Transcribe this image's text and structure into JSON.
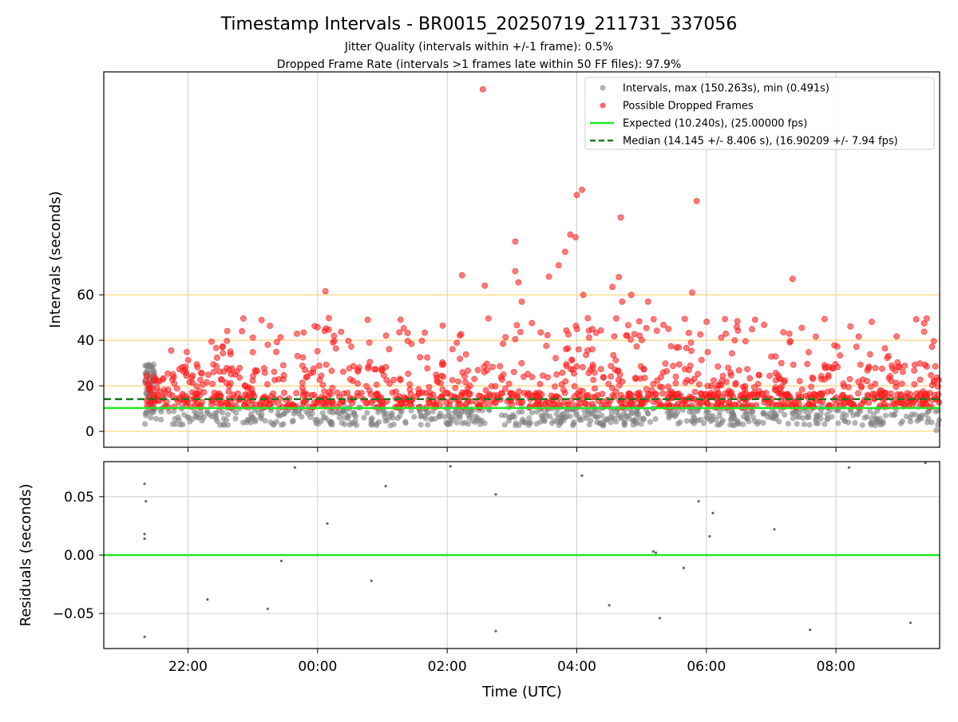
{
  "figure": {
    "title": "Timestamp Intervals - BR0015_20250719_211731_337056",
    "subtitle1": "Jitter Quality (intervals within +/-1 frame): 0.5%",
    "subtitle2": "Dropped Frame Rate (intervals >1 frames late within 50 FF files): 97.9%"
  },
  "chart_data": [
    {
      "type": "scatter",
      "ylabel": "Intervals (seconds)",
      "xrange_hours": [
        20.7,
        33.6
      ],
      "ylim": [
        -7,
        158
      ],
      "yticks": [
        0,
        20,
        40,
        60
      ],
      "reference_hlines": [
        0,
        20,
        40,
        60
      ],
      "reference_hline_color": "#ffd479",
      "grid_x": true,
      "legend_position": "top-right",
      "legend": [
        {
          "label": "Intervals, max (150.263s), min (0.491s)",
          "kind": "dot",
          "color": "#808080"
        },
        {
          "label": "Possible Dropped Frames",
          "kind": "dot",
          "color": "#ff0000"
        },
        {
          "label": "Expected (10.240s), (25.00000 fps)",
          "kind": "line",
          "color": "#22e822"
        },
        {
          "label": "Median (14.145 +/- 8.406 s), (16.90209 +/- 7.94 fps)",
          "kind": "dash",
          "color": "#1a7a1a"
        }
      ],
      "expected_interval": 10.24,
      "median_interval": 14.145,
      "t_start": 21.33,
      "t_end": 33.6,
      "n_points": 1900,
      "dropped_points": [
        [
          2.55,
          150.3
        ],
        [
          4.08,
          106.1
        ],
        [
          4.0,
          103.9
        ],
        [
          5.85,
          101.2
        ],
        [
          4.68,
          94.0
        ],
        [
          3.9,
          86.5
        ],
        [
          3.98,
          85.3
        ],
        [
          3.05,
          83.4
        ],
        [
          3.82,
          78.9
        ],
        [
          3.72,
          73.0
        ],
        [
          3.05,
          70.4
        ],
        [
          2.23,
          68.6
        ],
        [
          3.57,
          68.0
        ],
        [
          4.65,
          67.8
        ],
        [
          7.33,
          67.0
        ],
        [
          3.1,
          65.5
        ],
        [
          2.58,
          64.0
        ],
        [
          4.55,
          63.5
        ],
        [
          0.12,
          61.6
        ],
        [
          5.78,
          61.0
        ],
        [
          4.1,
          60.0
        ],
        [
          4.84,
          60.0
        ],
        [
          3.15,
          57.0
        ],
        [
          4.7,
          57.0
        ],
        [
          5.1,
          57.0
        ]
      ],
      "min_point": [
        33.55,
        0.49
      ]
    },
    {
      "type": "scatter",
      "xlabel": "Time (UTC)",
      "ylabel": "Residuals (seconds)",
      "ylim": [
        -0.08,
        0.08
      ],
      "yticks": [
        0.05,
        0.0,
        -0.05
      ],
      "ytick_labels": [
        "0.05",
        "0.00",
        "−0.05"
      ],
      "xticks": [
        22,
        24,
        26,
        28,
        30,
        32
      ],
      "xtick_labels": [
        "22:00",
        "00:00",
        "02:00",
        "04:00",
        "06:00",
        "08:00"
      ],
      "grid": true,
      "zero_line_color": "#22e822",
      "point_color": "#666666",
      "points": [
        [
          21.33,
          0.061
        ],
        [
          21.35,
          0.046
        ],
        [
          21.33,
          0.018
        ],
        [
          21.33,
          0.014
        ],
        [
          21.33,
          -0.07
        ],
        [
          22.3,
          -0.038
        ],
        [
          23.23,
          -0.046
        ],
        [
          23.44,
          -0.005
        ],
        [
          23.65,
          0.075
        ],
        [
          24.15,
          0.027
        ],
        [
          24.83,
          -0.022
        ],
        [
          25.05,
          0.059
        ],
        [
          26.05,
          0.076
        ],
        [
          26.75,
          0.052
        ],
        [
          26.75,
          -0.065
        ],
        [
          28.08,
          0.068
        ],
        [
          28.5,
          -0.043
        ],
        [
          29.18,
          0.003
        ],
        [
          29.22,
          0.002
        ],
        [
          29.28,
          -0.054
        ],
        [
          29.65,
          -0.011
        ],
        [
          29.88,
          0.046
        ],
        [
          30.05,
          0.016
        ],
        [
          30.1,
          0.036
        ],
        [
          31.05,
          0.022
        ],
        [
          31.6,
          -0.064
        ],
        [
          32.2,
          0.075
        ],
        [
          33.15,
          -0.058
        ],
        [
          33.38,
          0.079
        ]
      ]
    }
  ]
}
